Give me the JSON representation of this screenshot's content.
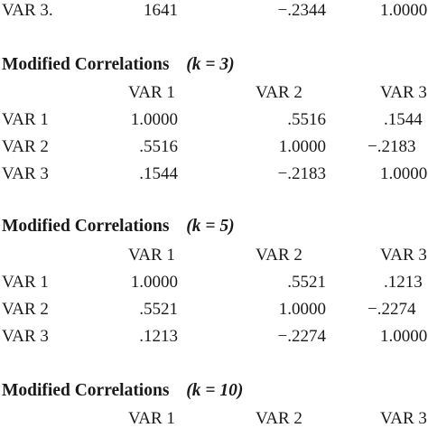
{
  "top_row": {
    "label": "VAR 3.",
    "values": [
      "1641",
      "−.2344",
      "1.0000"
    ]
  },
  "blocks": [
    {
      "title": "Modified Correlations",
      "k_label": "(k = 3)",
      "headers": [
        "VAR 1",
        "VAR 2",
        "VAR 3"
      ],
      "rows": [
        {
          "label": "VAR 1",
          "values": [
            "1.0000",
            ".5516",
            ".1544"
          ]
        },
        {
          "label": "VAR 2",
          "values": [
            ".5516",
            "1.0000",
            "−.2183"
          ]
        },
        {
          "label": "VAR 3",
          "values": [
            ".1544",
            "−.2183",
            "1.0000"
          ]
        }
      ]
    },
    {
      "title": "Modified Correlations",
      "k_label": "(k = 5)",
      "headers": [
        "VAR 1",
        "VAR 2",
        "VAR 3"
      ],
      "rows": [
        {
          "label": "VAR 1",
          "values": [
            "1.0000",
            ".5521",
            ".1213"
          ]
        },
        {
          "label": "VAR 2",
          "values": [
            ".5521",
            "1.0000",
            "−.2274"
          ]
        },
        {
          "label": "VAR 3",
          "values": [
            ".1213",
            "−.2274",
            "1.0000"
          ]
        }
      ]
    },
    {
      "title": "Modified Correlations",
      "k_label": "(k = 10)",
      "headers": [
        "VAR 1",
        "VAR 2",
        "VAR 3"
      ],
      "rows": []
    }
  ]
}
